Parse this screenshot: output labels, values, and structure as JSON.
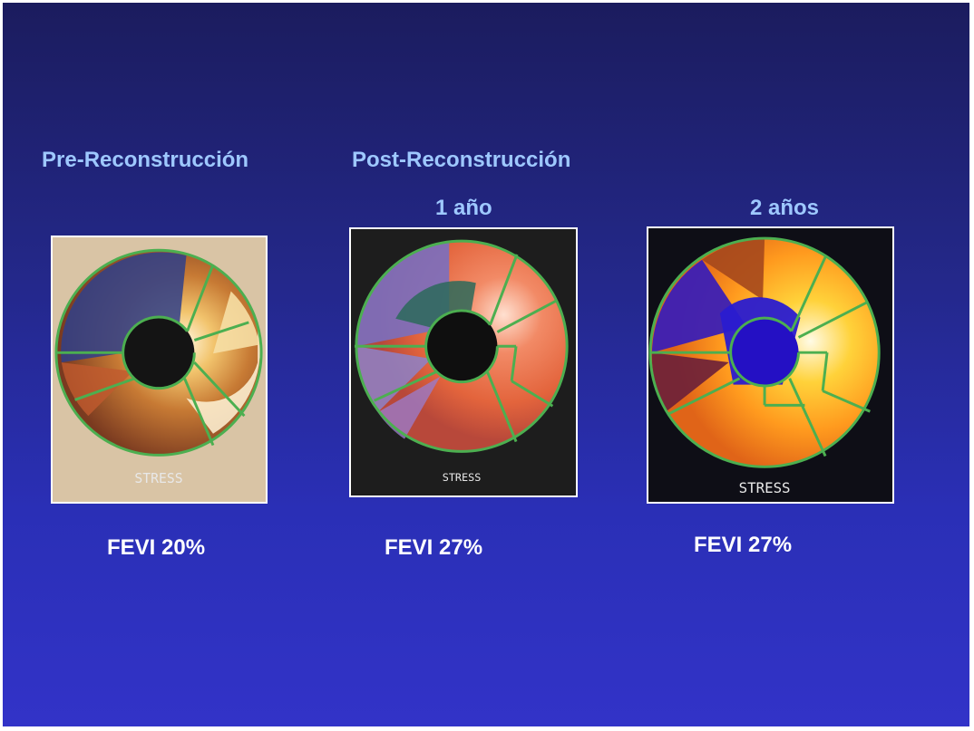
{
  "headings": {
    "pre": "Pre-Reconstrucción",
    "post": "Post-Reconstrucción",
    "year1": "1 año",
    "year2": "2 años"
  },
  "panels": [
    {
      "id": "pre",
      "label": "STRESS",
      "fevi": "FEVI 20%"
    },
    {
      "id": "post-1",
      "label": "STRESS",
      "fevi": "FEVI 27%"
    },
    {
      "id": "post-2",
      "label": "STRESS",
      "fevi": "FEVI 27%"
    }
  ],
  "colors": {
    "background_top": "#1b1c5e",
    "background_bottom": "#3233c8",
    "heading_text": "#9ec8ff",
    "fevi_text": "#ffffff",
    "segment_lines": "#4caf50"
  }
}
